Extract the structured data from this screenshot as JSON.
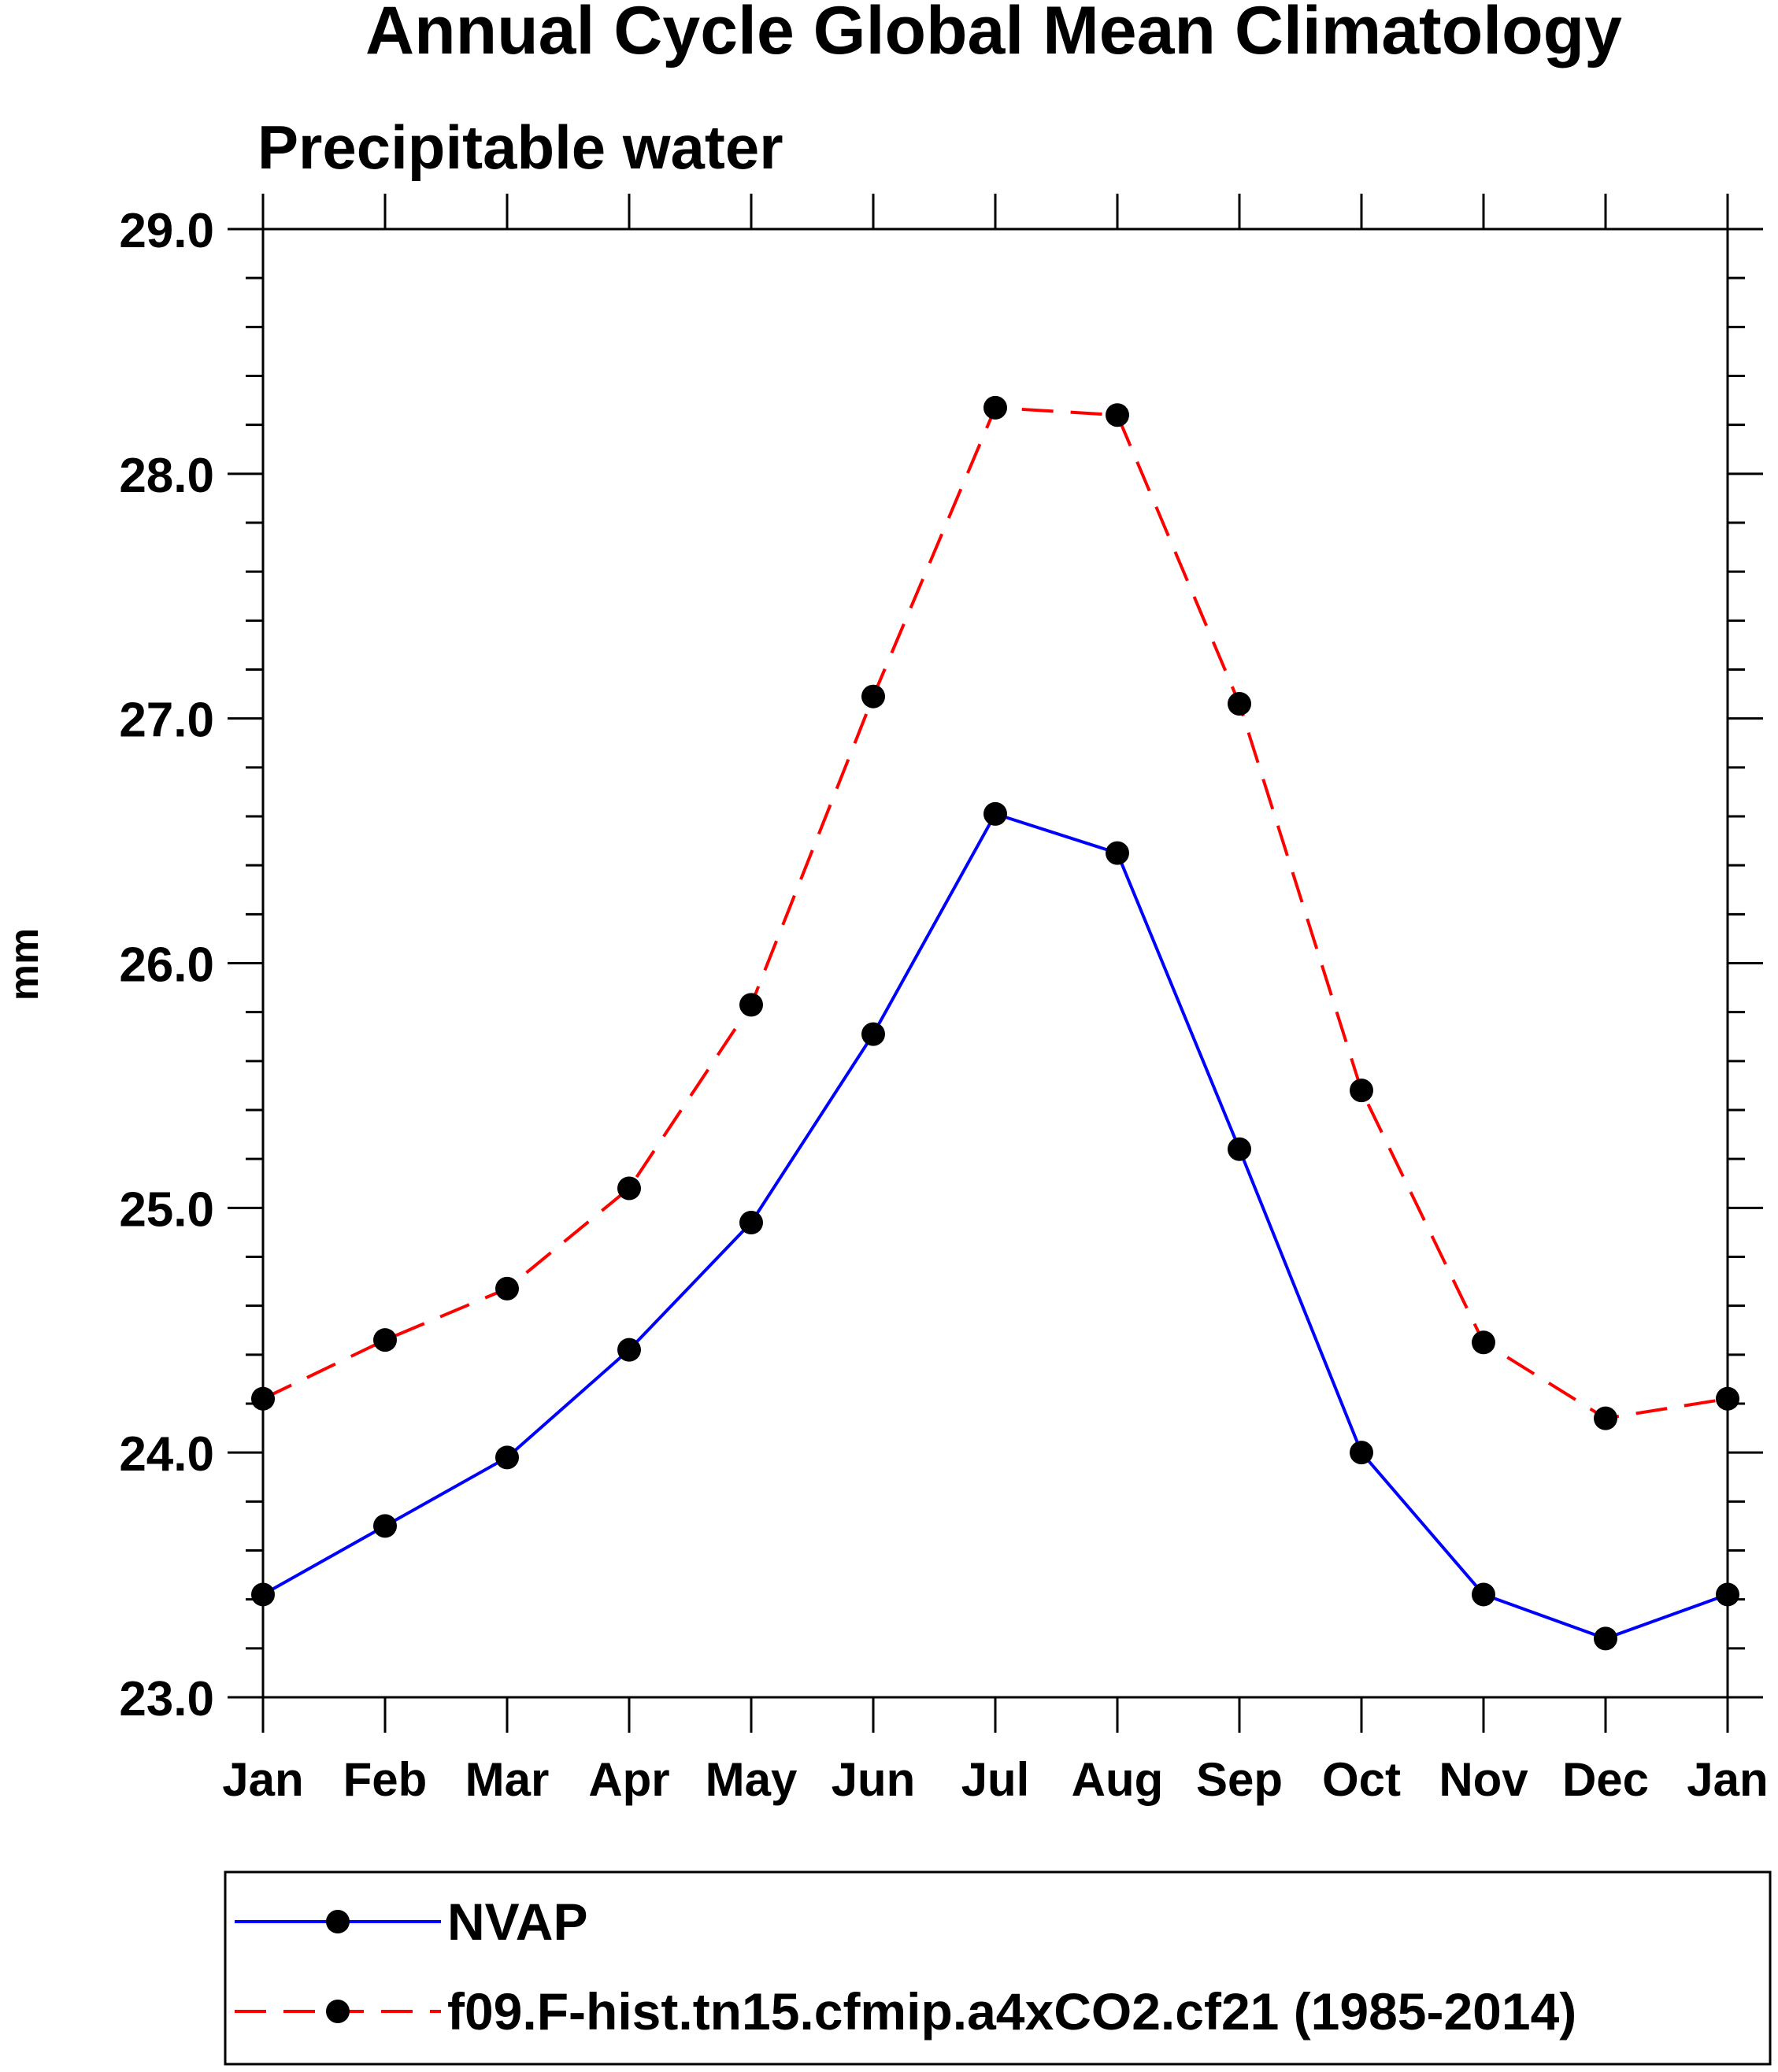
{
  "chart_data": {
    "type": "line",
    "title": "Annual Cycle Global Mean Climatology",
    "subtitle": "Precipitable water",
    "xlabel": "",
    "ylabel": "mm",
    "ylim": [
      23.0,
      29.0
    ],
    "yticks": [
      "23.0",
      "24.0",
      "25.0",
      "26.0",
      "27.0",
      "28.0",
      "29.0"
    ],
    "categories": [
      "Jan",
      "Feb",
      "Mar",
      "Apr",
      "May",
      "Jun",
      "Jul",
      "Aug",
      "Sep",
      "Oct",
      "Nov",
      "Dec",
      "Jan"
    ],
    "grid": false,
    "legend_position": "bottom",
    "series": [
      {
        "name": "NVAP",
        "color": "#0000ff",
        "dash": "solid",
        "values": [
          23.42,
          23.7,
          23.98,
          24.42,
          24.94,
          25.71,
          26.61,
          26.45,
          25.24,
          24.0,
          23.42,
          23.24,
          23.42
        ]
      },
      {
        "name": "f09.F-hist.tn15.cfmip.a4xCO2.cf21 (1985-2014)",
        "color": "#ff0000",
        "dash": "dashed",
        "values": [
          24.22,
          24.46,
          24.67,
          25.08,
          25.83,
          27.09,
          28.27,
          28.24,
          27.06,
          25.48,
          24.45,
          24.14,
          24.22
        ]
      }
    ]
  }
}
